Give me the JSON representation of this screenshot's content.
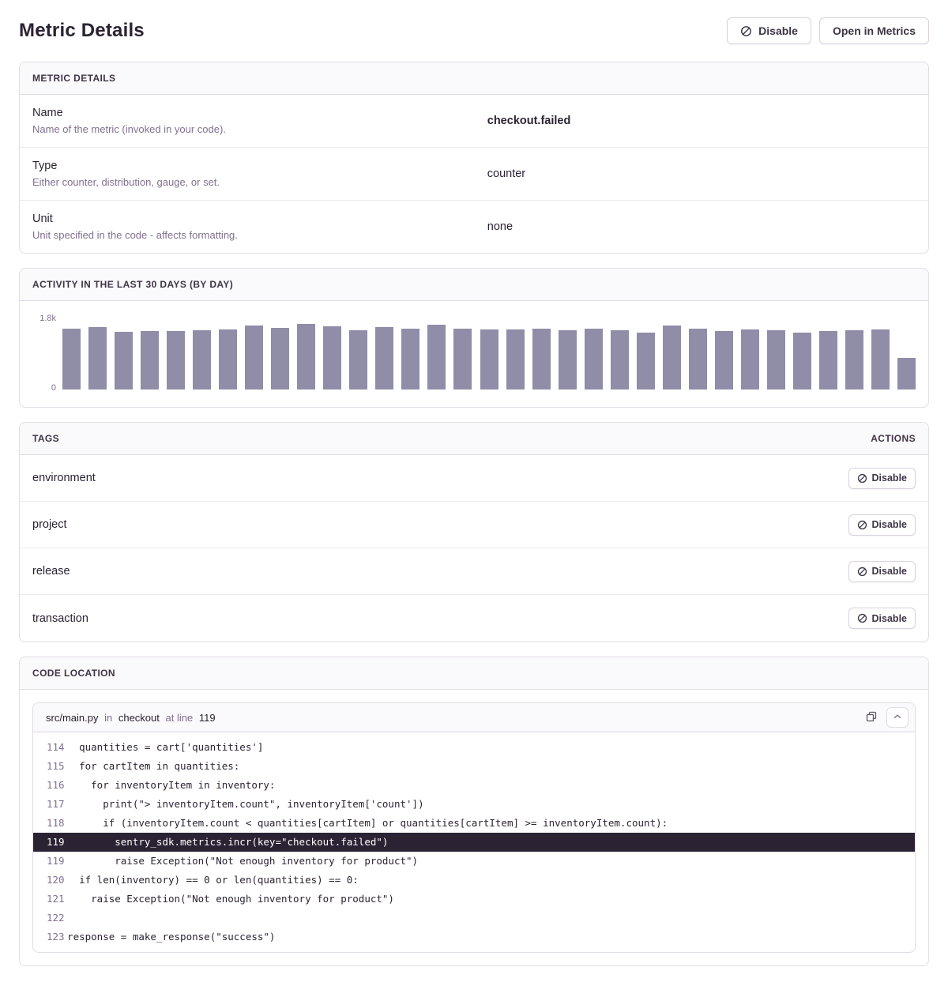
{
  "page": {
    "title": "Metric Details"
  },
  "header": {
    "disable_label": "Disable",
    "open_in_metrics_label": "Open in Metrics"
  },
  "panels": {
    "details": {
      "title": "METRIC DETAILS",
      "rows": [
        {
          "label": "Name",
          "description": "Name of the metric (invoked in your code).",
          "value": "checkout.failed",
          "value_bold": true
        },
        {
          "label": "Type",
          "description": "Either counter, distribution, gauge, or set.",
          "value": "counter",
          "value_bold": false
        },
        {
          "label": "Unit",
          "description": "Unit specified in the code - affects formatting.",
          "value": "none",
          "value_bold": false
        }
      ]
    },
    "activity": {
      "title": "ACTIVITY IN THE LAST 30 DAYS (BY DAY)",
      "y_max_label": "1.8k",
      "y_min_label": "0"
    },
    "tags": {
      "title": "TAGS",
      "actions_label": "ACTIONS",
      "disable_label": "Disable",
      "rows": [
        "environment",
        "project",
        "release",
        "transaction"
      ]
    },
    "code": {
      "title": "CODE LOCATION",
      "file": "src/main.py",
      "in_word": "in",
      "function_name": "checkout",
      "at_line_words": "at line",
      "line_ref": "119",
      "lines": [
        {
          "num": "114",
          "text": "    quantities = cart['quantities']",
          "highlighted": false
        },
        {
          "num": "115",
          "text": "    for cartItem in quantities:",
          "highlighted": false
        },
        {
          "num": "116",
          "text": "      for inventoryItem in inventory:",
          "highlighted": false
        },
        {
          "num": "117",
          "text": "        print(\"> inventoryItem.count\", inventoryItem['count'])",
          "highlighted": false
        },
        {
          "num": "118",
          "text": "        if (inventoryItem.count < quantities[cartItem] or quantities[cartItem] >= inventoryItem.count):",
          "highlighted": false
        },
        {
          "num": "119",
          "text": "          sentry_sdk.metrics.incr(key=\"checkout.failed\")",
          "highlighted": true
        },
        {
          "num": "119",
          "text": "          raise Exception(\"Not enough inventory for product\")",
          "highlighted": false
        },
        {
          "num": "120",
          "text": "    if len(inventory) == 0 or len(quantities) == 0:",
          "highlighted": false
        },
        {
          "num": "121",
          "text": "      raise Exception(\"Not enough inventory for product\")",
          "highlighted": false
        },
        {
          "num": "122",
          "text": "",
          "highlighted": false
        },
        {
          "num": "123",
          "text": "  response = make_response(\"success\")",
          "highlighted": false
        }
      ]
    }
  },
  "chart_data": {
    "type": "bar",
    "title": "ACTIVITY IN THE LAST 30 DAYS (BY DAY)",
    "xlabel": "",
    "ylabel": "",
    "ylim": [
      0,
      1800
    ],
    "y_tick_labels": [
      "0",
      "1.8k"
    ],
    "grid": false,
    "legend": false,
    "x_tick_labels_visible": false,
    "values": [
      1530,
      1580,
      1450,
      1470,
      1480,
      1490,
      1520,
      1620,
      1550,
      1650,
      1590,
      1500,
      1570,
      1530,
      1640,
      1530,
      1520,
      1510,
      1530,
      1490,
      1540,
      1490,
      1440,
      1610,
      1530,
      1480,
      1510,
      1490,
      1440,
      1480,
      1490,
      1510,
      800
    ]
  },
  "colors": {
    "bar": "#8f8da8",
    "highlight_line_bg": "#2b2233",
    "panel_header_bg": "#faf9fb",
    "panel_border": "#e0dce5",
    "text_primary": "#2b2233",
    "text_muted": "#80708f"
  }
}
